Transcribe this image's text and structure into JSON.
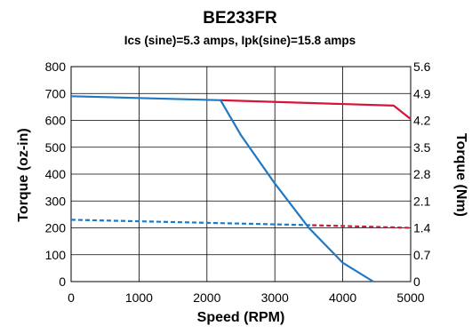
{
  "chart_data": {
    "type": "line",
    "title": "BE233FR",
    "subtitle": "Ics (sine)=5.3 amps, Ipk(sine)=15.8 amps",
    "xlabel": "Speed (RPM)",
    "ylabel": "Torque (oz-in)",
    "y2label": "Torque (Nm)",
    "xlim": [
      0,
      5000
    ],
    "ylim": [
      0,
      800
    ],
    "y2lim": [
      0,
      5.6
    ],
    "x_ticks": [
      "0",
      "1000",
      "2000",
      "3000",
      "4000",
      "5000"
    ],
    "x_tick_values": [
      0,
      1000,
      2000,
      3000,
      4000,
      5000
    ],
    "y_ticks": [
      "0",
      "100",
      "200",
      "300",
      "400",
      "500",
      "600",
      "700",
      "800"
    ],
    "y_tick_values": [
      0,
      100,
      200,
      300,
      400,
      500,
      600,
      700,
      800
    ],
    "y2_ticks": [
      "0",
      "0.7",
      "1.4",
      "2.1",
      "2.8",
      "3.5",
      "4.2",
      "4.9",
      "5.6"
    ],
    "y2_tick_values": [
      0,
      0.7,
      1.4,
      2.1,
      2.8,
      3.5,
      4.2,
      4.9,
      5.6
    ],
    "grid": true,
    "colors": {
      "blue": "#1f78c1",
      "red": "#d6143a"
    },
    "series": [
      {
        "color": "#d6143a",
        "style": "solid",
        "x": [
          2200,
          4750,
          5000
        ],
        "y": [
          675,
          655,
          605
        ]
      },
      {
        "color": "#1f78c1",
        "style": "solid",
        "x": [
          0,
          2200,
          2500,
          3000,
          3500,
          4000,
          4450
        ],
        "y": [
          690,
          675,
          545,
          365,
          200,
          70,
          0
        ]
      },
      {
        "color": "#d6143a",
        "style": "dashed",
        "x": [
          3550,
          5000
        ],
        "y": [
          210,
          200
        ]
      },
      {
        "color": "#1f78c1",
        "style": "dashed",
        "x": [
          0,
          3550
        ],
        "y": [
          230,
          210
        ]
      }
    ]
  }
}
